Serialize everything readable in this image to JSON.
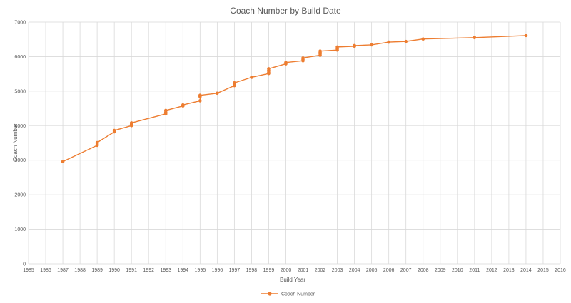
{
  "chart_data": {
    "type": "scatter",
    "title": "Coach Number by Build Date",
    "xlabel": "Build Year",
    "ylabel": "Coach Number",
    "xlim": [
      1985,
      2016
    ],
    "ylim": [
      0,
      7000
    ],
    "x_ticks": [
      1985,
      1986,
      1987,
      1988,
      1989,
      1990,
      1991,
      1992,
      1993,
      1994,
      1995,
      1996,
      1997,
      1998,
      1999,
      2000,
      2001,
      2002,
      2003,
      2004,
      2005,
      2006,
      2007,
      2008,
      2009,
      2010,
      2011,
      2012,
      2013,
      2014,
      2015,
      2016
    ],
    "y_ticks": [
      0,
      1000,
      2000,
      3000,
      4000,
      5000,
      6000,
      7000
    ],
    "grid": {
      "x": true,
      "y": true
    },
    "legend_position": "bottom",
    "color": "#ed7d31",
    "series": [
      {
        "name": "Coach Number",
        "points": [
          [
            1987,
            2960
          ],
          [
            1989,
            3430
          ],
          [
            1989,
            3470
          ],
          [
            1989,
            3510
          ],
          [
            1990,
            3820
          ],
          [
            1990,
            3860
          ],
          [
            1991,
            4000
          ],
          [
            1991,
            4040
          ],
          [
            1991,
            4080
          ],
          [
            1993,
            4340
          ],
          [
            1993,
            4390
          ],
          [
            1993,
            4440
          ],
          [
            1994,
            4570
          ],
          [
            1994,
            4600
          ],
          [
            1995,
            4720
          ],
          [
            1995,
            4840
          ],
          [
            1995,
            4880
          ],
          [
            1996,
            4940
          ],
          [
            1997,
            5160
          ],
          [
            1997,
            5200
          ],
          [
            1997,
            5240
          ],
          [
            1998,
            5400
          ],
          [
            1999,
            5510
          ],
          [
            1999,
            5550
          ],
          [
            1999,
            5600
          ],
          [
            1999,
            5650
          ],
          [
            2000,
            5790
          ],
          [
            2000,
            5830
          ],
          [
            2001,
            5880
          ],
          [
            2001,
            5920
          ],
          [
            2001,
            5960
          ],
          [
            2002,
            6040
          ],
          [
            2002,
            6080
          ],
          [
            2002,
            6120
          ],
          [
            2002,
            6160
          ],
          [
            2003,
            6190
          ],
          [
            2003,
            6230
          ],
          [
            2003,
            6280
          ],
          [
            2004,
            6300
          ],
          [
            2004,
            6320
          ],
          [
            2005,
            6340
          ],
          [
            2006,
            6420
          ],
          [
            2007,
            6440
          ],
          [
            2008,
            6510
          ],
          [
            2011,
            6550
          ],
          [
            2014,
            6610
          ]
        ]
      }
    ]
  }
}
